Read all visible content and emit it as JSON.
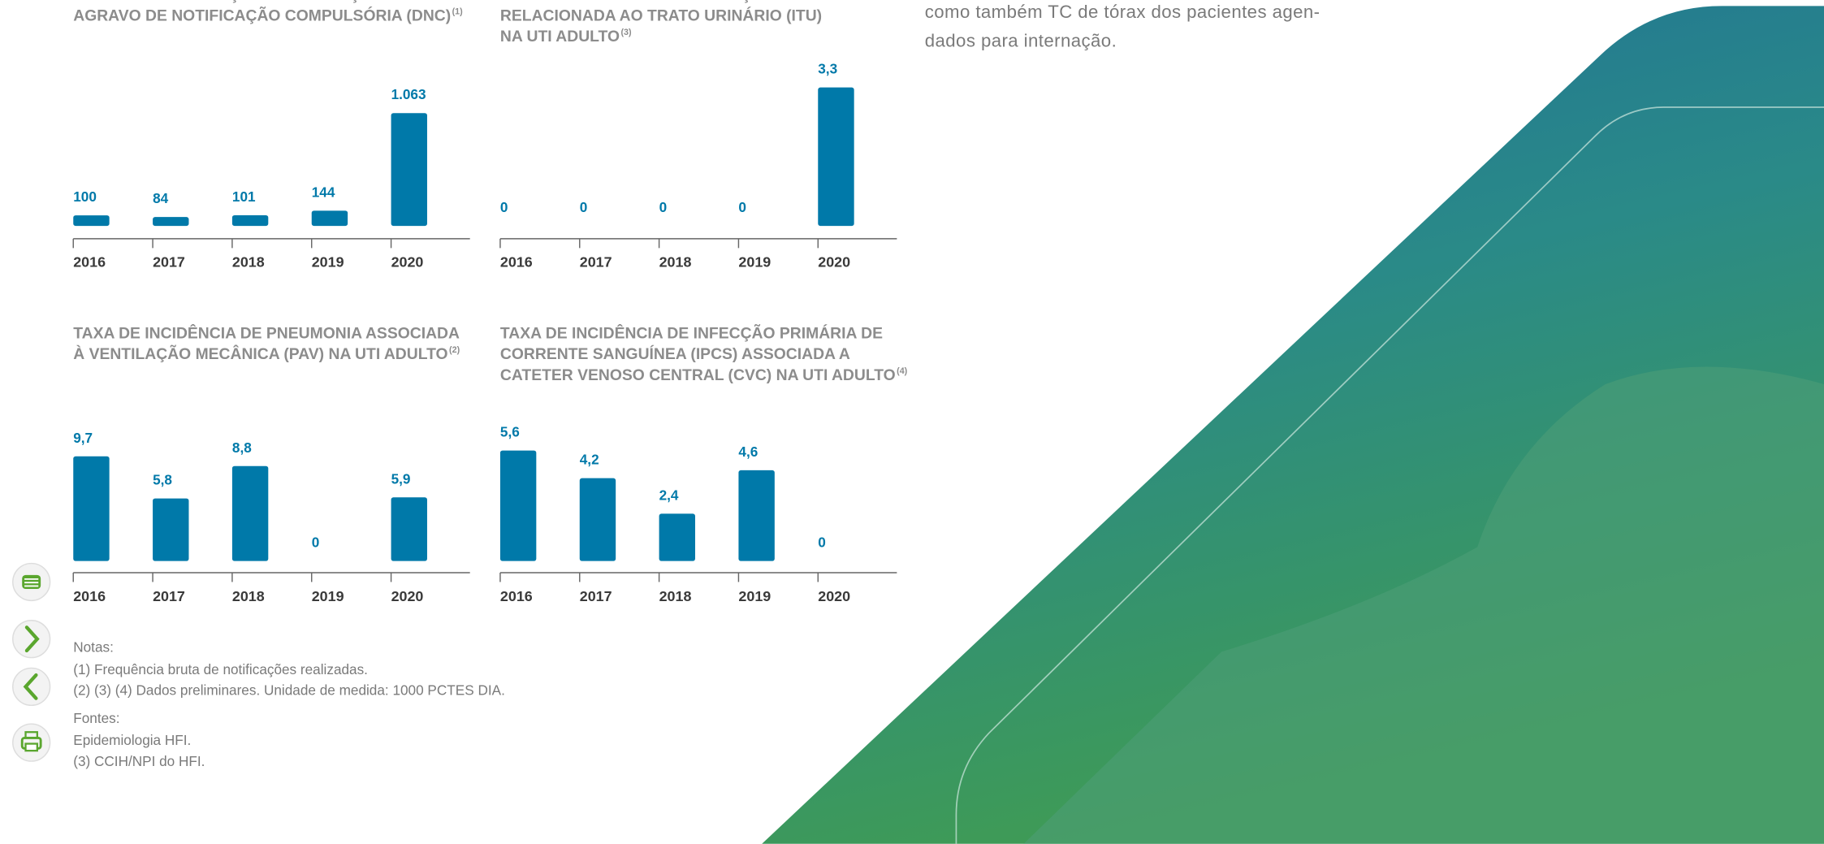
{
  "chart_data": [
    {
      "type": "bar",
      "title": [
        "TOTAL DE NOTIFICAÇÕES DE DOENÇA E/OU",
        "AGRAVO DE NOTIFICAÇÃO COMPULSÓRIA (DNC)"
      ],
      "title_note": "(1)",
      "categories": [
        "2016",
        "2017",
        "2018",
        "2019",
        "2020"
      ],
      "values": [
        100,
        84,
        101,
        144,
        1063
      ],
      "value_labels": [
        "100",
        "84",
        "101",
        "144",
        "1.063"
      ],
      "color": "#0079a9"
    },
    {
      "type": "bar",
      "title": [
        "TAXA DE INCIDÊNCIA DE INFECÇÕES",
        "RELACIONADA AO TRATO URINÁRIO (ITU)",
        "NA UTI ADULTO"
      ],
      "title_note": "(3)",
      "categories": [
        "2016",
        "2017",
        "2018",
        "2019",
        "2020"
      ],
      "values": [
        0,
        0,
        0,
        0,
        3.3
      ],
      "value_labels": [
        "0",
        "0",
        "0",
        "0",
        "3,3"
      ],
      "color": "#0079a9"
    },
    {
      "type": "bar",
      "title": [
        "TAXA DE INCIDÊNCIA DE PNEUMONIA ASSOCIADA",
        "À VENTILAÇÃO MECÂNICA (PAV) NA UTI ADULTO"
      ],
      "title_note": "(2)",
      "categories": [
        "2016",
        "2017",
        "2018",
        "2019",
        "2020"
      ],
      "values": [
        9.7,
        5.8,
        8.8,
        0,
        5.9
      ],
      "value_labels": [
        "9,7",
        "5,8",
        "8,8",
        "0",
        "5,9"
      ],
      "color": "#0079a9"
    },
    {
      "type": "bar",
      "title": [
        "TAXA DE INCIDÊNCIA DE INFECÇÃO PRIMÁRIA DE",
        "CORRENTE SANGUÍNEA (IPCS) ASSOCIADA A",
        "CATETER VENOSO CENTRAL (CVC) NA UTI ADULTO"
      ],
      "title_note": "(4)",
      "categories": [
        "2016",
        "2017",
        "2018",
        "2019",
        "2020"
      ],
      "values": [
        5.6,
        4.2,
        2.4,
        4.6,
        0
      ],
      "value_labels": [
        "5,6",
        "4,2",
        "2,4",
        "4,6",
        "0"
      ],
      "color": "#0079a9"
    }
  ],
  "paragraph": [
    "como também TC de tórax dos pacientes agen-",
    "dados para internação."
  ],
  "notes": [
    "Notas:",
    "(1) Frequência bruta de notificações realizadas.",
    "(2) (3) (4) Dados preliminares. Unidade de medida: 1000 PCTES DIA."
  ],
  "sources": [
    "Fontes:",
    "Epidemiologia HFI.",
    "(3) CCIH/NPI do HFI."
  ]
}
